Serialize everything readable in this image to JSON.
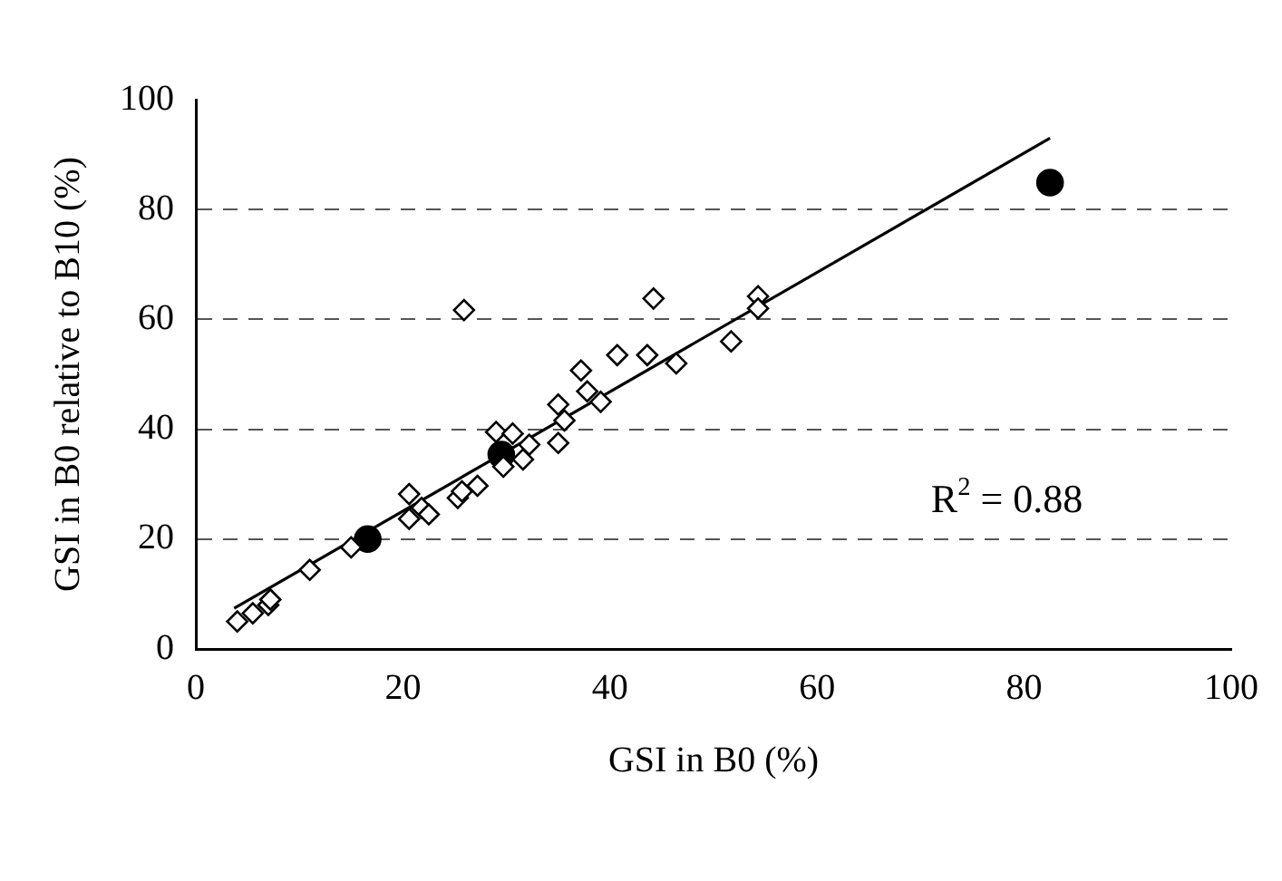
{
  "chart_data": {
    "type": "scatter",
    "xlabel": "GSI in B0 (%)",
    "ylabel": "GSI in B0 relative to B10 (%)",
    "xlim": [
      0,
      100
    ],
    "xticks": [
      0,
      20,
      40,
      60,
      80,
      100
    ],
    "ylim": [
      0,
      100
    ],
    "yticks": [
      0,
      20,
      40,
      60,
      80,
      100
    ],
    "grid": "y",
    "legend": false,
    "annotations": [
      "R$^{2}$ = 0.88"
    ],
    "series": [
      {
        "marker": "diamond",
        "color": "#000000",
        "x": [
          4.0,
          5.5,
          7.0,
          7.2,
          11.0,
          15.0,
          20.6,
          20.6,
          21.8,
          22.5,
          25.3,
          25.7,
          25.9,
          27.2,
          29.0,
          29.7,
          30.6,
          31.6,
          32.2,
          35.0,
          35.0,
          35.6,
          37.2,
          37.8,
          39.1,
          40.7,
          43.6,
          44.2,
          46.4,
          51.7,
          54.3,
          54.3
        ],
        "values": [
          5.0,
          6.5,
          8.0,
          9.0,
          14.4,
          18.5,
          28.2,
          23.7,
          25.7,
          24.5,
          27.5,
          28.7,
          61.7,
          29.7,
          39.5,
          33.2,
          39.2,
          34.5,
          37.2,
          37.5,
          44.5,
          41.6,
          50.7,
          46.9,
          45.0,
          53.5,
          53.5,
          63.8,
          52.0,
          56.0,
          64.2,
          62.0
        ]
      },
      {
        "marker": "circle",
        "color": "#000000",
        "x": [
          16.6,
          29.5,
          82.5
        ],
        "values": [
          20.0,
          35.4,
          84.9
        ]
      },
      {
        "type": "line",
        "marker": "none",
        "color": "#000000",
        "x": [
          3.7,
          82.5
        ],
        "values": [
          7.4,
          93.0
        ]
      }
    ]
  }
}
